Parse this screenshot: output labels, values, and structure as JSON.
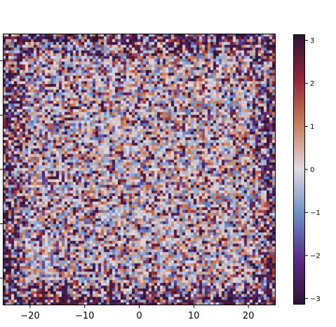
{
  "chart_data": {
    "type": "heatmap",
    "title": "",
    "xlabel": "",
    "ylabel": "",
    "xlim": [
      -25,
      25
    ],
    "ylim": [
      -25,
      25
    ],
    "x_ticks": [
      -20,
      -10,
      0,
      10,
      20
    ],
    "x_tick_labels": [
      "−20",
      "−10",
      "0",
      "10",
      "20"
    ],
    "y_ticks": [
      -20,
      -10,
      0,
      10,
      20
    ],
    "colormap": "twilight_shifted",
    "colormap_stops": [
      "#2f1436",
      "#5b2b87",
      "#6a8fc5",
      "#e2d9e2",
      "#c8805a",
      "#93283a",
      "#2f1436"
    ],
    "colorbar": {
      "vmin": -3.14159,
      "vmax": 3.14159,
      "ticks": [
        3,
        2,
        1,
        0,
        -1,
        -2,
        -3
      ],
      "tick_labels": [
        "3",
        "2",
        "1",
        "0",
        "−1",
        "−2",
        "−3"
      ]
    },
    "grid": false,
    "description": "Phase map: mostly near-zero noisy values with stronger ±π speckle toward the borders"
  }
}
